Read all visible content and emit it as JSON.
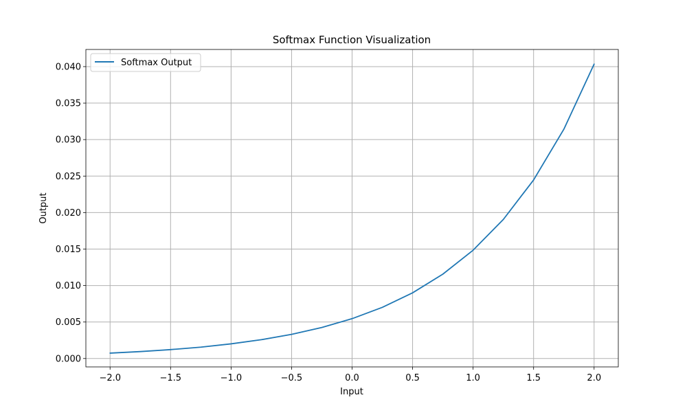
{
  "chart_data": {
    "type": "line",
    "title": "Softmax Function Visualization",
    "xlabel": "Input",
    "ylabel": "Output",
    "xlim": [
      -2.2,
      2.2
    ],
    "ylim": [
      -0.00115,
      0.04235
    ],
    "xticks": [
      -2.0,
      -1.5,
      -1.0,
      -0.5,
      0.0,
      0.5,
      1.0,
      1.5,
      2.0
    ],
    "xtick_labels": [
      "−2.0",
      "−1.5",
      "−1.0",
      "−0.5",
      "0.0",
      "0.5",
      "1.0",
      "1.5",
      "2.0"
    ],
    "yticks": [
      0.0,
      0.005,
      0.01,
      0.015,
      0.02,
      0.025,
      0.03,
      0.035,
      0.04
    ],
    "ytick_labels": [
      "0.000",
      "0.005",
      "0.010",
      "0.015",
      "0.020",
      "0.025",
      "0.030",
      "0.035",
      "0.040"
    ],
    "grid": true,
    "legend_position": "top-left",
    "series": [
      {
        "name": "Softmax Output",
        "color": "#1f77b4",
        "x": [
          -2.0,
          -1.75,
          -1.5,
          -1.25,
          -1.0,
          -0.75,
          -0.5,
          -0.25,
          0.0,
          0.25,
          0.5,
          0.75,
          1.0,
          1.25,
          1.5,
          1.75,
          2.0
        ],
        "y": [
          0.00074,
          0.00095,
          0.00122,
          0.00156,
          0.00201,
          0.00258,
          0.00331,
          0.00425,
          0.00546,
          0.00701,
          0.009,
          0.01156,
          0.01484,
          0.01906,
          0.02447,
          0.03142,
          0.04034
        ]
      }
    ]
  }
}
